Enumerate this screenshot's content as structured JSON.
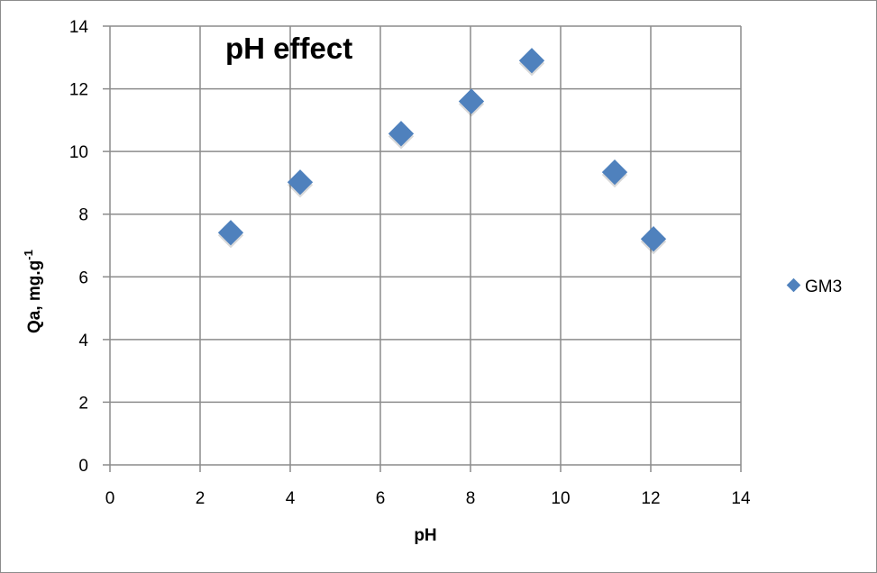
{
  "chart_data": {
    "type": "scatter",
    "title": "pH effect",
    "xlabel": "pH",
    "ylabel": "Qa, mg.g-1",
    "ylabel_parts": {
      "main": "Qa, mg.g",
      "superscript": "-1"
    },
    "xlim": [
      0,
      14
    ],
    "ylim": [
      0,
      14
    ],
    "x_ticks": [
      "0",
      "2",
      "4",
      "6",
      "8",
      "10",
      "12",
      "14"
    ],
    "y_ticks": [
      "0",
      "2",
      "4",
      "6",
      "8",
      "10",
      "12",
      "14"
    ],
    "grid": true,
    "legend_position": "right",
    "series": [
      {
        "name": "GM3",
        "color": "#4f81bd",
        "marker": "diamond",
        "x": [
          2.68,
          4.22,
          6.46,
          8.02,
          9.36,
          11.2,
          12.06
        ],
        "y": [
          7.41,
          9.02,
          10.57,
          11.6,
          12.9,
          9.34,
          7.21
        ]
      }
    ]
  },
  "colors": {
    "grid": "#8c8c8c",
    "marker": "#4f81bd",
    "border": "#8c8c8c"
  }
}
